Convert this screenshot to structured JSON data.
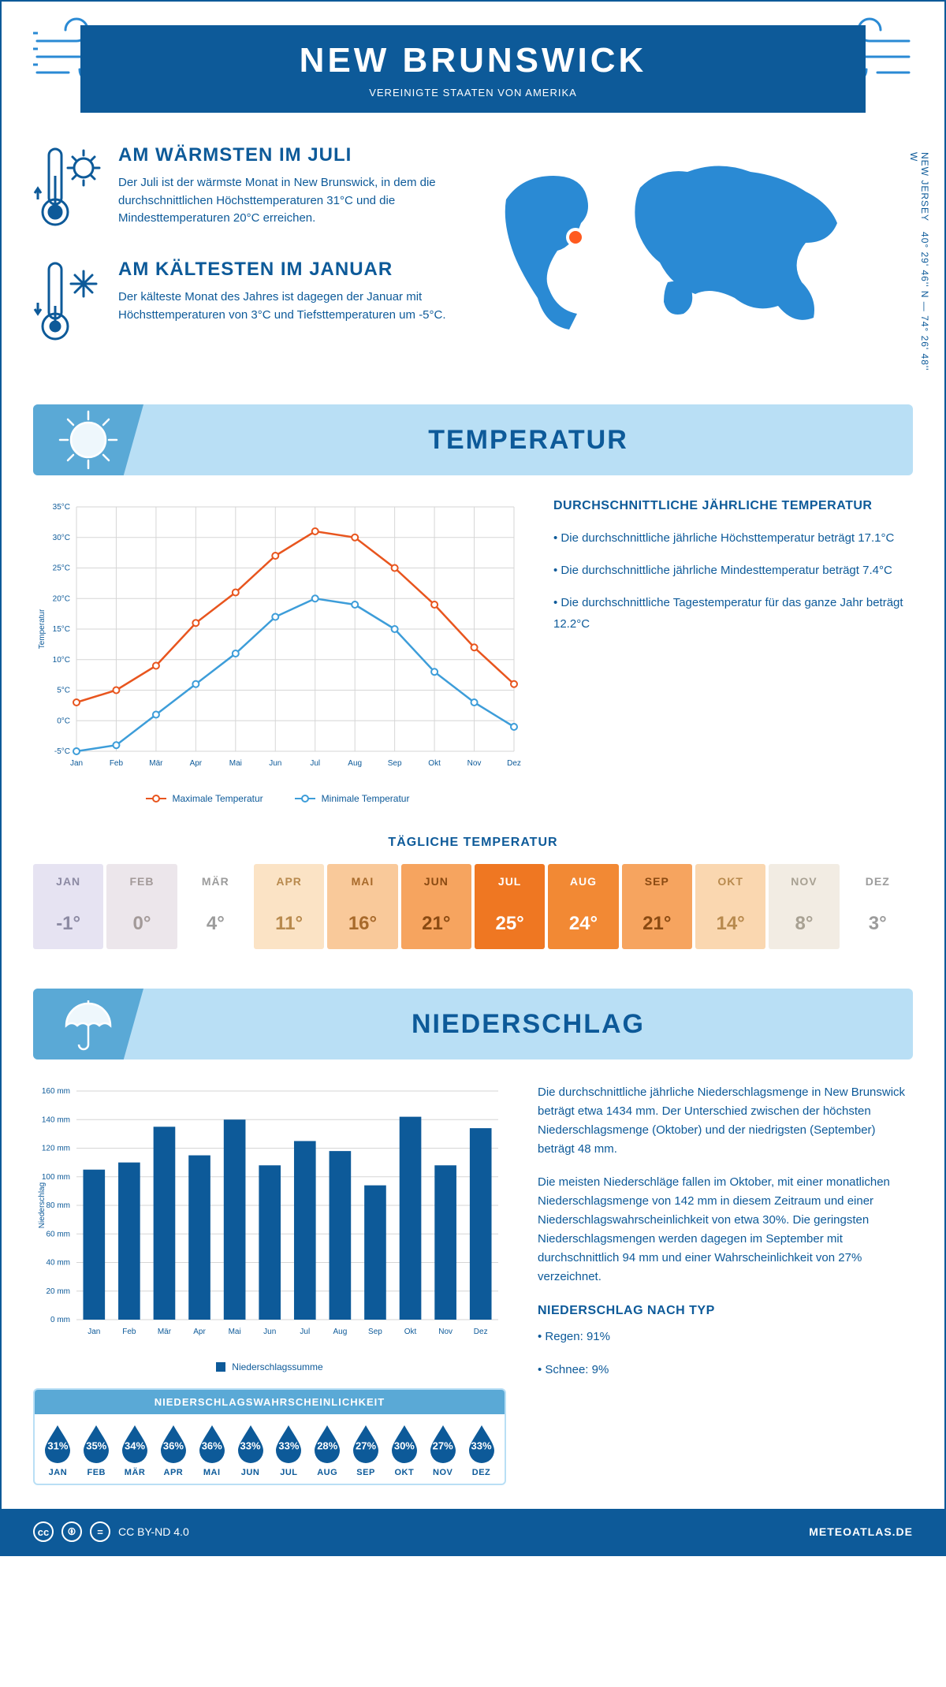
{
  "header": {
    "title": "NEW BRUNSWICK",
    "subtitle": "VEREINIGTE STAATEN VON AMERIKA"
  },
  "colors": {
    "primary": "#0d5a99",
    "accent": "#2a8ad4",
    "light": "#b9dff5",
    "mid": "#5aa9d6",
    "max_line": "#e8551e",
    "min_line": "#3d9dd9",
    "grid": "#d6d6d6"
  },
  "facts": {
    "warm": {
      "title": "AM WÄRMSTEN IM JULI",
      "text": "Der Juli ist der wärmste Monat in New Brunswick, in dem die durchschnittlichen Höchsttemperaturen 31°C und die Mindesttemperaturen 20°C erreichen."
    },
    "cold": {
      "title": "AM KÄLTESTEN IM JANUAR",
      "text": "Der kälteste Monat des Jahres ist dagegen der Januar mit Höchsttemperaturen von 3°C und Tiefsttemperaturen um -5°C."
    }
  },
  "map": {
    "coords": "40° 29' 46'' N — 74° 26' 48'' W",
    "state": "NEW JERSEY",
    "marker_color": "#ff5a1f"
  },
  "sections": {
    "temp": "TEMPERATUR",
    "precip": "NIEDERSCHLAG"
  },
  "temp_chart": {
    "type": "line",
    "months": [
      "Jan",
      "Feb",
      "Mär",
      "Apr",
      "Mai",
      "Jun",
      "Jul",
      "Aug",
      "Sep",
      "Okt",
      "Nov",
      "Dez"
    ],
    "max": [
      3,
      5,
      9,
      16,
      21,
      27,
      31,
      30,
      25,
      19,
      12,
      6
    ],
    "min": [
      -5,
      -4,
      1,
      6,
      11,
      17,
      20,
      19,
      15,
      8,
      3,
      -1
    ],
    "ylim": [
      -5,
      35
    ],
    "ytick_step": 5,
    "y_unit": "°C",
    "ylabel": "Temperatur",
    "legend": {
      "max": "Maximale Temperatur",
      "min": "Minimale Temperatur"
    }
  },
  "temp_text": {
    "title": "DURCHSCHNITTLICHE JÄHRLICHE TEMPERATUR",
    "p1": "• Die durchschnittliche jährliche Höchsttemperatur beträgt 17.1°C",
    "p2": "• Die durchschnittliche jährliche Mindesttemperatur beträgt 7.4°C",
    "p3": "• Die durchschnittliche Tagestemperatur für das ganze Jahr beträgt 12.2°C"
  },
  "daily": {
    "title": "TÄGLICHE TEMPERATUR",
    "months": [
      "JAN",
      "FEB",
      "MÄR",
      "APR",
      "MAI",
      "JUN",
      "JUL",
      "AUG",
      "SEP",
      "OKT",
      "NOV",
      "DEZ"
    ],
    "values": [
      "-1°",
      "0°",
      "4°",
      "11°",
      "16°",
      "21°",
      "25°",
      "24°",
      "21°",
      "14°",
      "8°",
      "3°"
    ],
    "bg": [
      "#e6e3f2",
      "#ece6eb",
      "#fff",
      "#fbe3c5",
      "#f9c99a",
      "#f6a45f",
      "#ef7722",
      "#f28934",
      "#f6a45f",
      "#fad7b0",
      "#f2ece3",
      "#fff"
    ],
    "txt": [
      "#8c8aa3",
      "#a39a99",
      "#9c9c9c",
      "#b88a4e",
      "#a86a2b",
      "#8a4a12",
      "#fff",
      "#fff",
      "#8a4a12",
      "#b88a4e",
      "#a8a193",
      "#9c9c9c"
    ]
  },
  "precip_chart": {
    "type": "bar",
    "months": [
      "Jan",
      "Feb",
      "Mär",
      "Apr",
      "Mai",
      "Jun",
      "Jul",
      "Aug",
      "Sep",
      "Okt",
      "Nov",
      "Dez"
    ],
    "values": [
      105,
      110,
      135,
      115,
      140,
      108,
      125,
      118,
      94,
      142,
      108,
      134
    ],
    "ylim": [
      0,
      160
    ],
    "ytick_step": 20,
    "y_unit": "mm",
    "ylabel": "Niederschlag",
    "bar_color": "#0d5a99",
    "legend": "Niederschlagssumme"
  },
  "precip_text": {
    "p1": "Die durchschnittliche jährliche Niederschlagsmenge in New Brunswick beträgt etwa 1434 mm. Der Unterschied zwischen der höchsten Niederschlagsmenge (Oktober) und der niedrigsten (September) beträgt 48 mm.",
    "p2": "Die meisten Niederschläge fallen im Oktober, mit einer monatlichen Niederschlagsmenge von 142 mm in diesem Zeitraum und einer Niederschlagswahrscheinlichkeit von etwa 30%. Die geringsten Niederschlagsmengen werden dagegen im September mit durchschnittlich 94 mm und einer Wahrscheinlichkeit von 27% verzeichnet.",
    "type_title": "NIEDERSCHLAG NACH TYP",
    "type1": "• Regen: 91%",
    "type2": "• Schnee: 9%"
  },
  "prob": {
    "title": "NIEDERSCHLAGSWAHRSCHEINLICHKEIT",
    "months": [
      "JAN",
      "FEB",
      "MÄR",
      "APR",
      "MAI",
      "JUN",
      "JUL",
      "AUG",
      "SEP",
      "OKT",
      "NOV",
      "DEZ"
    ],
    "values": [
      "31%",
      "35%",
      "34%",
      "36%",
      "36%",
      "33%",
      "33%",
      "28%",
      "27%",
      "30%",
      "27%",
      "33%"
    ]
  },
  "footer": {
    "license": "CC BY-ND 4.0",
    "brand": "METEOATLAS.DE"
  }
}
